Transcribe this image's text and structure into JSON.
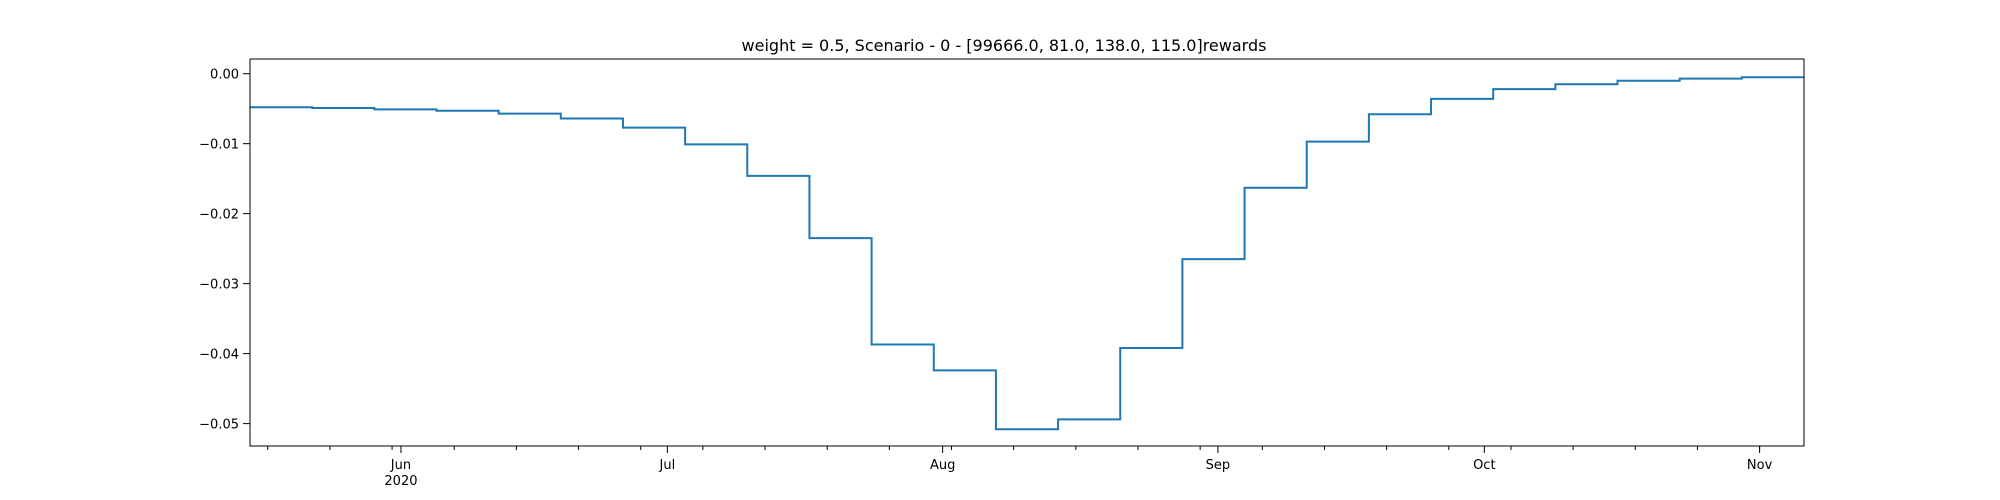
{
  "chart_data": {
    "type": "line",
    "step": true,
    "title": "weight = 0.5, Scenario - 0 - [99666.0, 81.0, 138.0, 115.0]rewards",
    "xlabel": "",
    "ylabel": "",
    "xlim": [
      "2020-05-15",
      "2020-11-06"
    ],
    "ylim": [
      -0.0532,
      0.0021
    ],
    "x_ticks": [
      {
        "date": "2020-06-01",
        "label": "Jun",
        "sublabel": "2020"
      },
      {
        "date": "2020-07-01",
        "label": "Jul"
      },
      {
        "date": "2020-08-01",
        "label": "Aug"
      },
      {
        "date": "2020-09-01",
        "label": "Sep"
      },
      {
        "date": "2020-10-01",
        "label": "Oct"
      },
      {
        "date": "2020-11-01",
        "label": "Nov"
      }
    ],
    "y_ticks": [
      {
        "value": 0.0,
        "label": "0.00"
      },
      {
        "value": -0.01,
        "label": "−0.01"
      },
      {
        "value": -0.02,
        "label": "−0.02"
      },
      {
        "value": -0.03,
        "label": "−0.03"
      },
      {
        "value": -0.04,
        "label": "−0.04"
      },
      {
        "value": -0.05,
        "label": "−0.05"
      }
    ],
    "grid": false,
    "legend": "none",
    "series": [
      {
        "color": "#1f77b4",
        "points": [
          {
            "x": "2020-05-15",
            "y": -0.0048
          },
          {
            "x": "2020-05-22",
            "y": -0.0049
          },
          {
            "x": "2020-05-29",
            "y": -0.0051
          },
          {
            "x": "2020-06-05",
            "y": -0.0053
          },
          {
            "x": "2020-06-12",
            "y": -0.0057
          },
          {
            "x": "2020-06-19",
            "y": -0.0064
          },
          {
            "x": "2020-06-26",
            "y": -0.0077
          },
          {
            "x": "2020-07-03",
            "y": -0.0101
          },
          {
            "x": "2020-07-10",
            "y": -0.0146
          },
          {
            "x": "2020-07-17",
            "y": -0.0235
          },
          {
            "x": "2020-07-24",
            "y": -0.0387
          },
          {
            "x": "2020-07-31",
            "y": -0.0424
          },
          {
            "x": "2020-08-07",
            "y": -0.0508
          },
          {
            "x": "2020-08-14",
            "y": -0.0494
          },
          {
            "x": "2020-08-21",
            "y": -0.0392
          },
          {
            "x": "2020-08-28",
            "y": -0.0265
          },
          {
            "x": "2020-09-04",
            "y": -0.0163
          },
          {
            "x": "2020-09-11",
            "y": -0.0097
          },
          {
            "x": "2020-09-18",
            "y": -0.0058
          },
          {
            "x": "2020-09-25",
            "y": -0.0036
          },
          {
            "x": "2020-10-02",
            "y": -0.0022
          },
          {
            "x": "2020-10-09",
            "y": -0.0015
          },
          {
            "x": "2020-10-16",
            "y": -0.001
          },
          {
            "x": "2020-10-23",
            "y": -0.0007
          },
          {
            "x": "2020-10-30",
            "y": -0.0005
          }
        ]
      }
    ]
  }
}
